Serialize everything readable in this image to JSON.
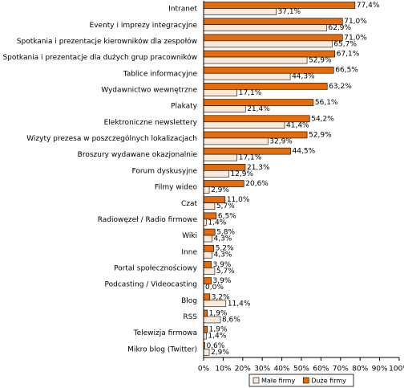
{
  "chart_data": {
    "type": "hbar",
    "categories": [
      "Intranet",
      "Eventy i imprezy integracyjne",
      "Spotkania i prezentacje kierowników dla zespołów",
      "Spotkania i prezentacje dla dużych grup pracowników",
      "Tablice informacyjne",
      "Wydawnictwo wewnętrzne",
      "Plakaty",
      "Elektroniczne newslettery",
      "Wizyty prezesa w poszczególnych lokalizacjach",
      "Broszury wydawane okazjonalnie",
      "Forum dyskusyjne",
      "Filmy wideo",
      "Czat",
      "Radiowęzeł / Radio firmowe",
      "Wiki",
      "Inne",
      "Portal społecznościowy",
      "Podcasting / Videocasting",
      "Blog",
      "RSS",
      "Telewizja firmowa",
      "Mikro blog (Twitter)"
    ],
    "series": [
      {
        "name": "Małe firmy",
        "color": "#fde9d9",
        "values": [
          37.1,
          62.9,
          65.7,
          52.9,
          44.3,
          17.1,
          21.4,
          41.4,
          32.9,
          17.1,
          12.9,
          2.9,
          5.7,
          1.4,
          4.3,
          4.3,
          5.7,
          0.0,
          11.4,
          8.6,
          1.4,
          2.9
        ],
        "value_labels": [
          "37,1%",
          "62,9%",
          "65,7%",
          "52,9%",
          "44,3%",
          "17,1%",
          "21,4%",
          "41,4%",
          "32,9%",
          "17,1%",
          "12,9%",
          "2,9%",
          "5,7%",
          "1,4%",
          "4,3%",
          "4,3%",
          "5,7%",
          "0,0%",
          "11,4%",
          "8,6%",
          "1,4%",
          "2,9%"
        ]
      },
      {
        "name": "Duże firmy",
        "color": "#e46c0a",
        "values": [
          77.4,
          71.0,
          71.0,
          67.1,
          66.5,
          63.2,
          56.1,
          54.2,
          52.9,
          44.5,
          21.3,
          20.6,
          11.0,
          6.5,
          5.8,
          5.2,
          3.9,
          3.9,
          3.2,
          1.9,
          1.9,
          0.6
        ],
        "value_labels": [
          "77,4%",
          "71,0%",
          "71,0%",
          "67,1%",
          "66,5%",
          "63,2%",
          "56,1%",
          "54,2%",
          "52,9%",
          "44,5%",
          "21,3%",
          "20,6%",
          "11,0%",
          "6,5%",
          "5,8%",
          "5,2%",
          "3,9%",
          "3,9%",
          "3,2%",
          "1,9%",
          "1,9%",
          "0,6%"
        ]
      }
    ],
    "xlim": [
      0,
      100
    ],
    "xticks": [
      {
        "value": 0,
        "label": "0%"
      },
      {
        "value": 10,
        "label": "10%"
      },
      {
        "value": 20,
        "label": "20%"
      },
      {
        "value": 30,
        "label": "30%"
      },
      {
        "value": 40,
        "label": "40%"
      },
      {
        "value": 50,
        "label": "50%"
      },
      {
        "value": 60,
        "label": "60%"
      },
      {
        "value": 70,
        "label": "70%"
      },
      {
        "value": 80,
        "label": "80%"
      },
      {
        "value": 90,
        "label": "90%"
      },
      {
        "value": 100,
        "label": "100%"
      }
    ],
    "legend": "bottom"
  }
}
